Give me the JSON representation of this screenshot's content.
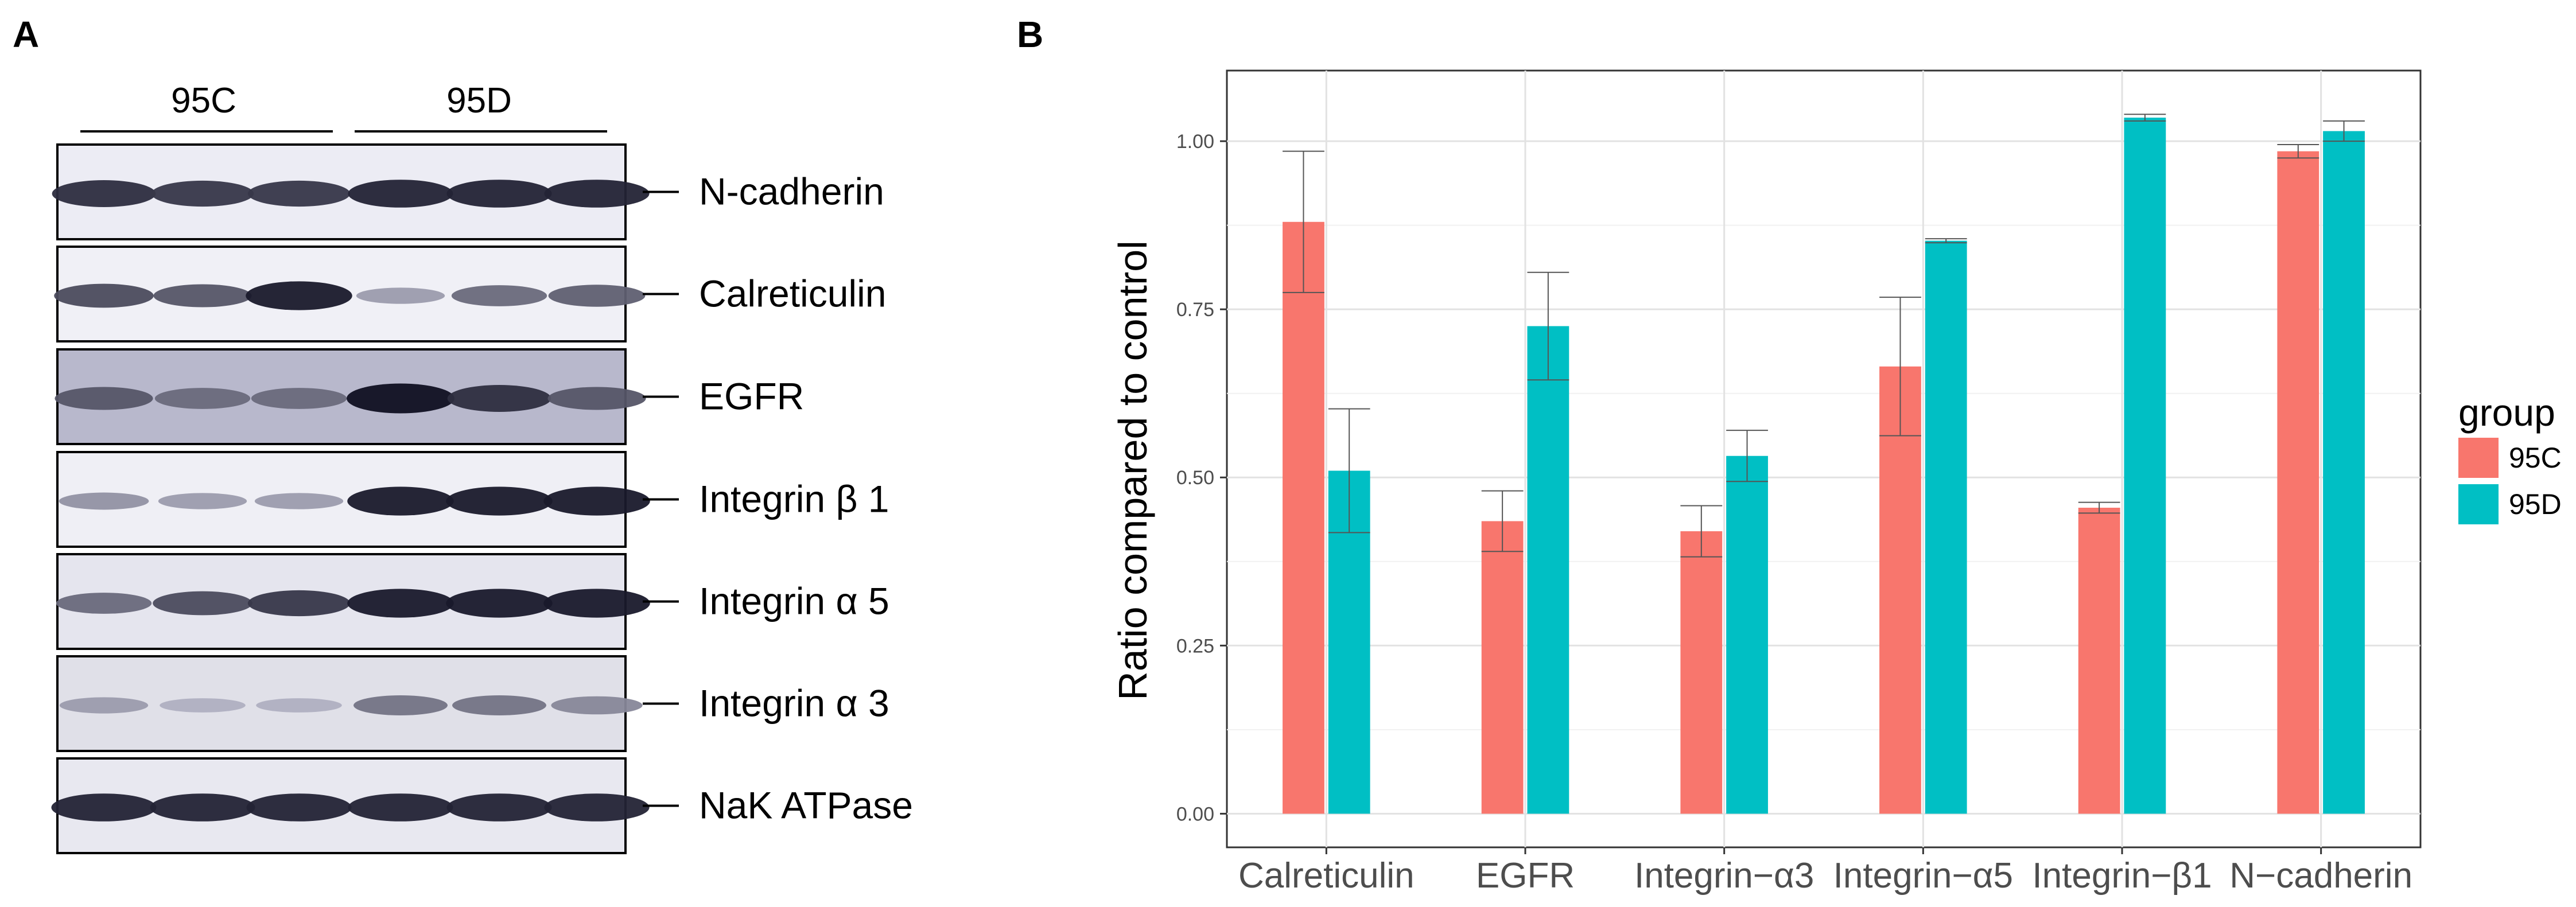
{
  "panel_a": {
    "letter": "A",
    "lane_groups": [
      "95C",
      "95D"
    ],
    "bands": [
      {
        "label": "N-cadherin",
        "intensities": [
          0.85,
          0.8,
          0.8,
          0.9,
          0.9,
          0.9
        ],
        "background": "#ececf4"
      },
      {
        "label": "Calreticulin",
        "intensities": [
          0.7,
          0.65,
          0.95,
          0.3,
          0.55,
          0.6
        ],
        "background": "#f0f0f6"
      },
      {
        "label": "EGFR",
        "intensities": [
          0.65,
          0.55,
          0.55,
          1.0,
          0.85,
          0.65
        ],
        "background": "#b8b8cc"
      },
      {
        "label": "Integrin β 1",
        "intensities": [
          0.35,
          0.3,
          0.3,
          0.95,
          0.95,
          0.95
        ],
        "background": "#efeff5"
      },
      {
        "label": "Integrin α 5",
        "intensities": [
          0.55,
          0.7,
          0.8,
          0.95,
          0.95,
          0.95
        ],
        "background": "#e5e5ee"
      },
      {
        "label": "Integrin α 3",
        "intensities": [
          0.3,
          0.2,
          0.2,
          0.5,
          0.5,
          0.4
        ],
        "background": "#e0e0e8"
      },
      {
        "label": "NaK ATPase",
        "intensities": [
          0.9,
          0.9,
          0.9,
          0.9,
          0.9,
          0.9
        ],
        "background": "#e8e8f0"
      }
    ]
  },
  "panel_b": {
    "letter": "B"
  },
  "chart_data": {
    "type": "bar",
    "title": "",
    "xlabel": "",
    "ylabel": "Ratio compared to control",
    "categories": [
      "Calreticulin",
      "EGFR",
      "Integrin−α3",
      "Integrin−α5",
      "Integrin−β1",
      "N−cadherin"
    ],
    "series": [
      {
        "name": "95C",
        "color": "#F8766D",
        "values": [
          0.88,
          0.435,
          0.42,
          0.665,
          0.455,
          0.985
        ],
        "error": [
          0.105,
          0.045,
          0.038,
          0.103,
          0.008,
          0.01
        ]
      },
      {
        "name": "95D",
        "color": "#00BFC4",
        "values": [
          0.51,
          0.725,
          0.532,
          0.852,
          1.035,
          1.015
        ],
        "error": [
          0.092,
          0.08,
          0.038,
          0.003,
          0.005,
          0.015
        ]
      }
    ],
    "ylim": [
      -0.05,
      1.105
    ],
    "yticks": [
      0.0,
      0.25,
      0.5,
      0.75,
      1.0
    ],
    "ytick_labels": [
      "0.00",
      "0.25",
      "0.50",
      "0.75",
      "1.00"
    ],
    "grid": true,
    "legend": {
      "title": "group",
      "position": "right"
    }
  }
}
